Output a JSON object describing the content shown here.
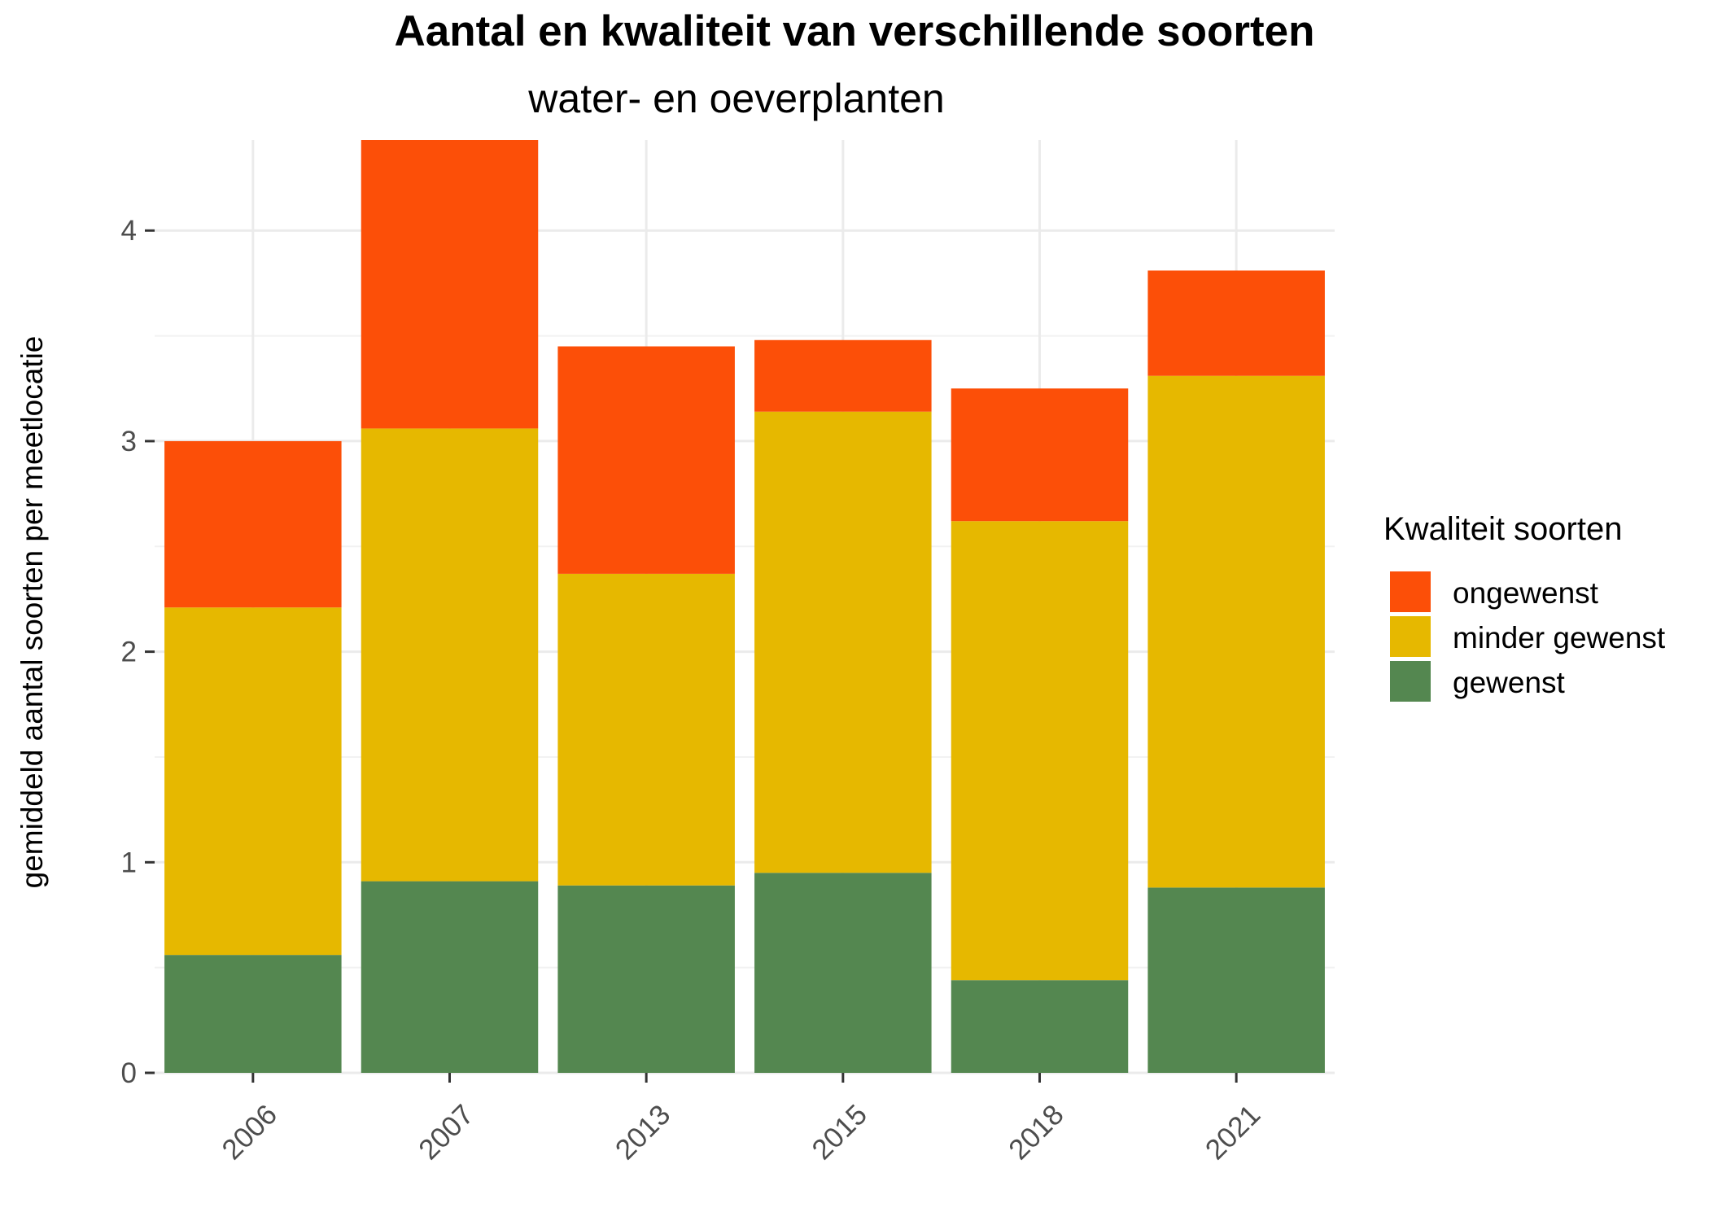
{
  "chart_data": {
    "type": "bar",
    "stacked": true,
    "title": "Aantal en kwaliteit van verschillende soorten",
    "subtitle": "water- en oeverplanten",
    "xlabel": "",
    "ylabel": "gemiddeld aantal soorten per meetlocatie",
    "categories": [
      "2006",
      "2007",
      "2013",
      "2015",
      "2018",
      "2021"
    ],
    "ylim": [
      0,
      4.43
    ],
    "yticks": [
      0,
      1,
      2,
      3,
      4
    ],
    "ytick_labels": [
      "0",
      "1",
      "2",
      "3",
      "4"
    ],
    "grid": true,
    "series": [
      {
        "name": "gewenst",
        "color": "#548750",
        "values": [
          0.56,
          0.91,
          0.89,
          0.95,
          0.44,
          0.88
        ]
      },
      {
        "name": "minder gewenst",
        "color": "#E6B800",
        "values": [
          1.65,
          2.15,
          1.48,
          2.19,
          2.18,
          2.43
        ]
      },
      {
        "name": "ongewenst",
        "color": "#FC4F08",
        "values": [
          0.79,
          1.37,
          1.08,
          0.34,
          0.63,
          0.5
        ]
      }
    ],
    "legend": {
      "title": "Kwaliteit soorten",
      "position": "right",
      "order": [
        "ongewenst",
        "minder gewenst",
        "gewenst"
      ]
    }
  }
}
